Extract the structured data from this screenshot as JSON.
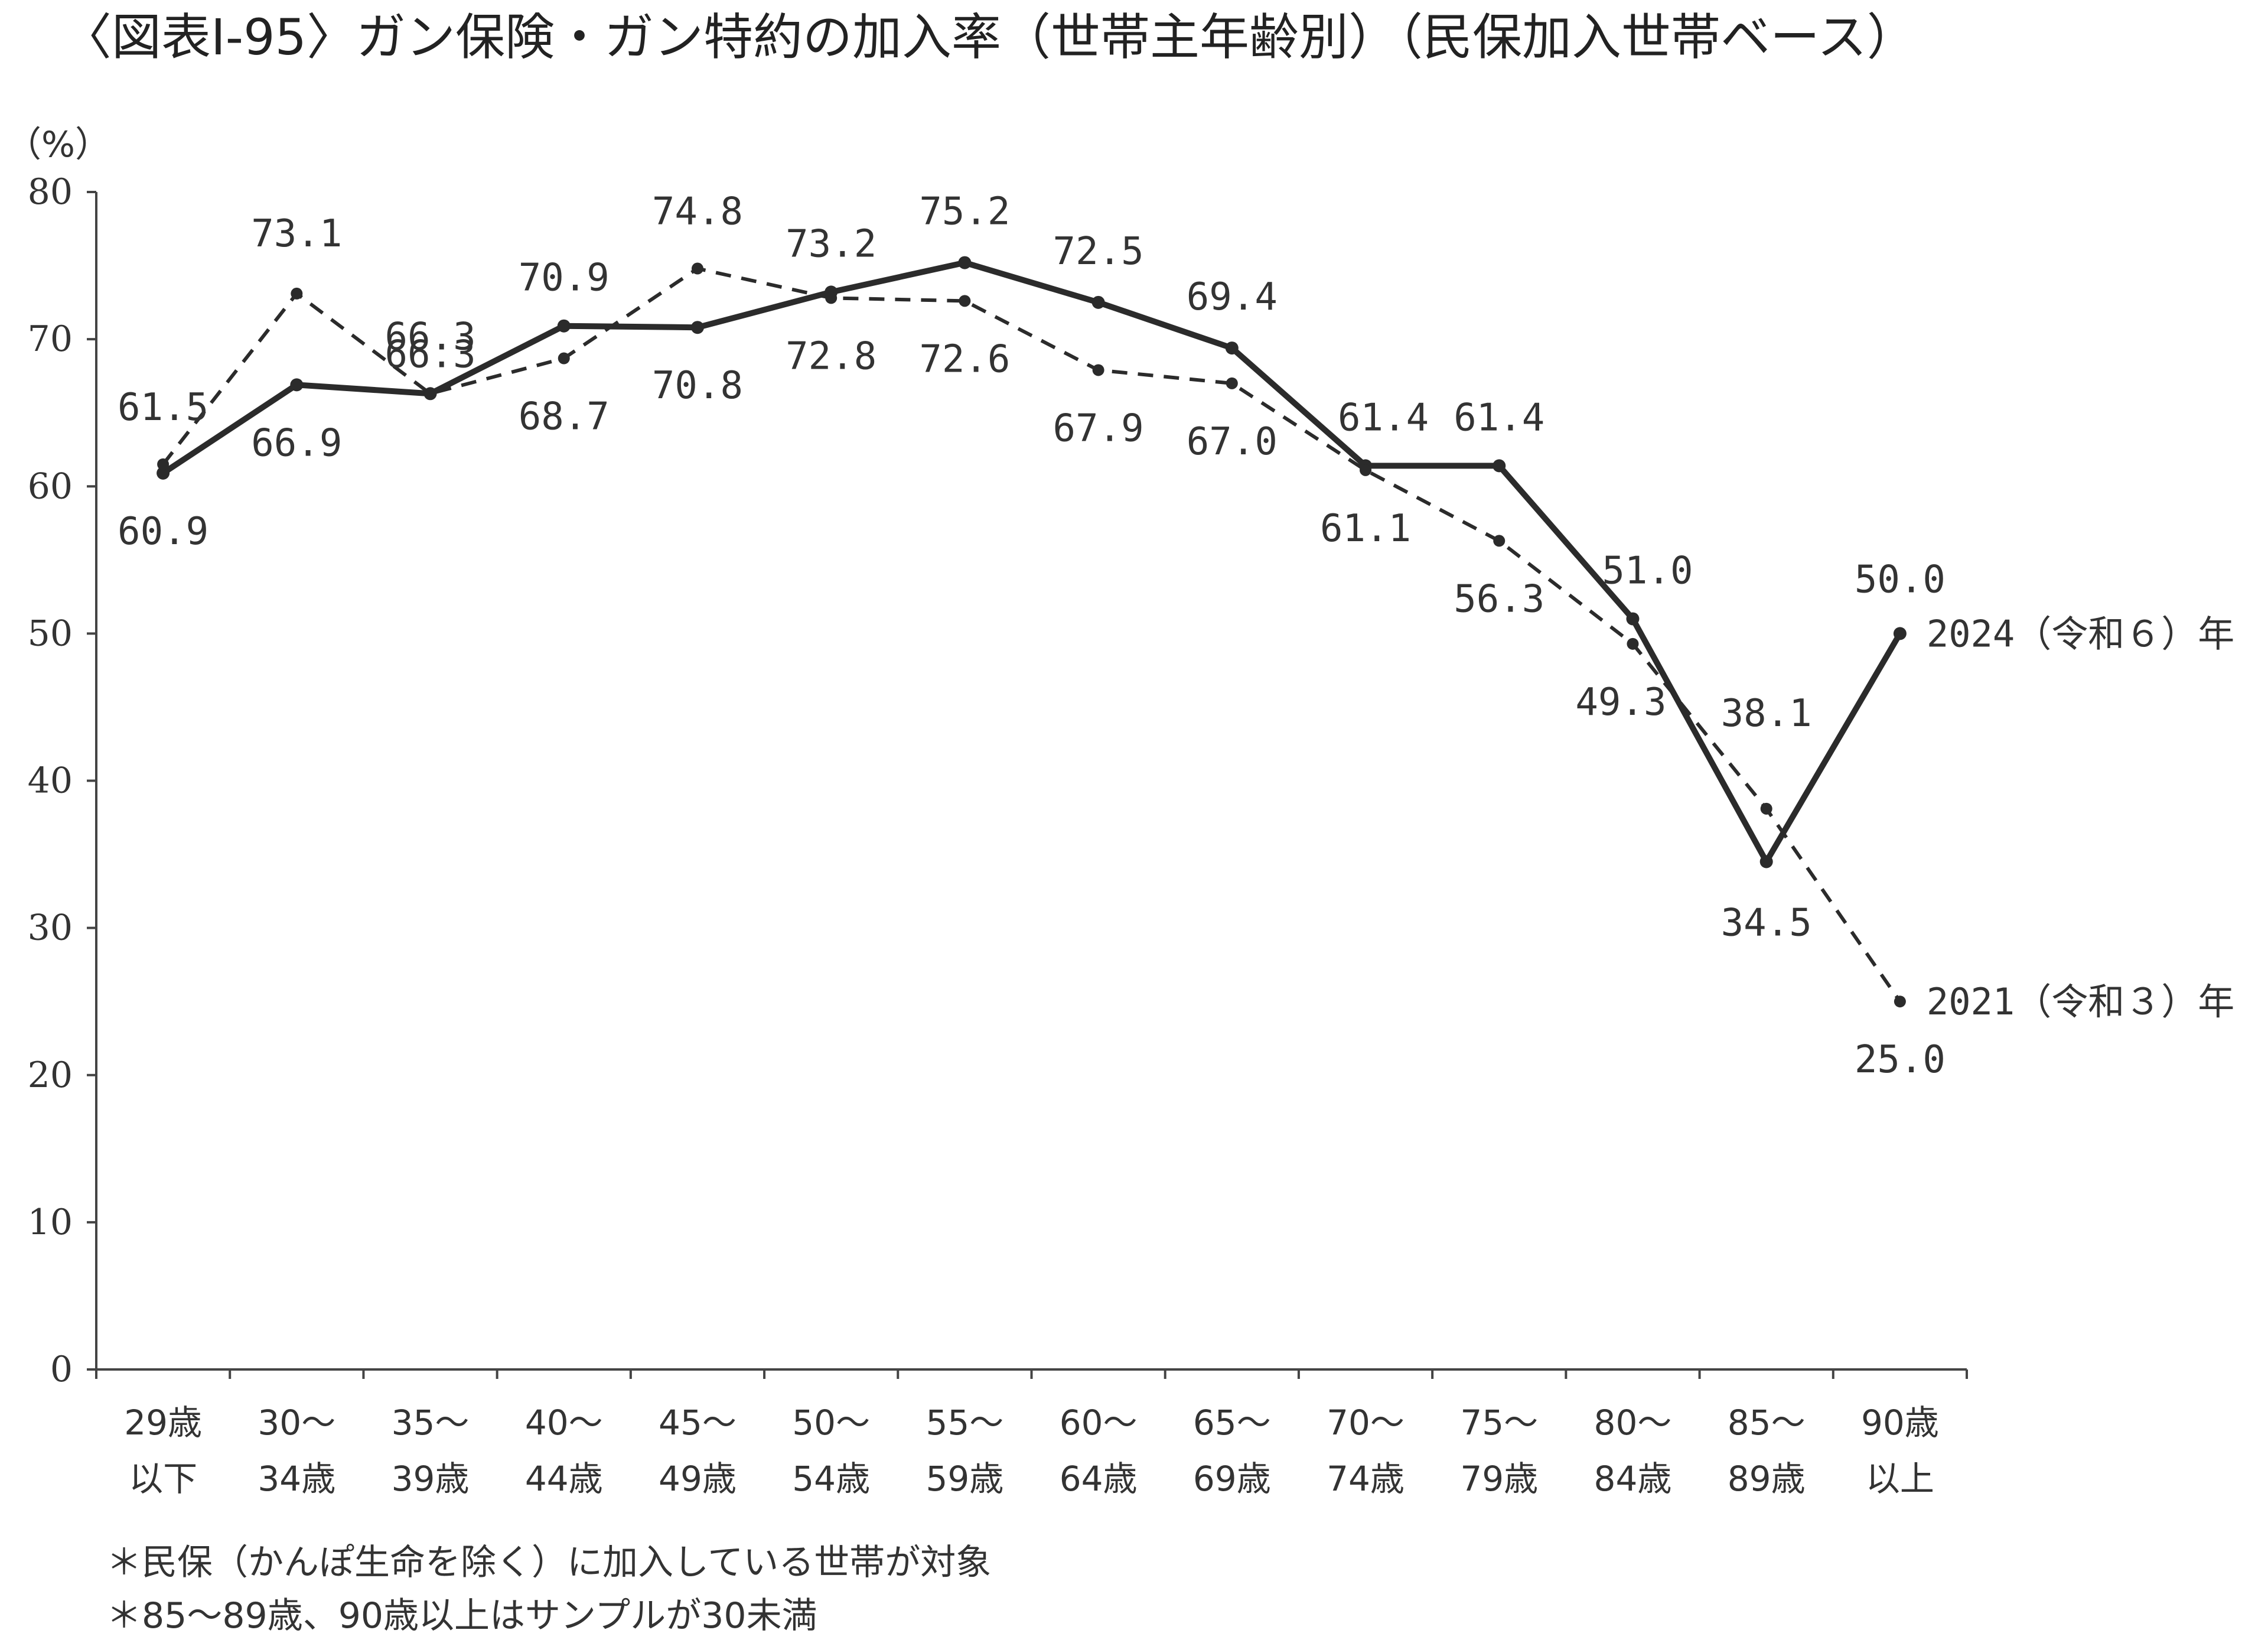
{
  "chart_data": {
    "type": "line",
    "title": "〈図表Ⅰ-95〉ガン保険・ガン特約の加入率（世帯主年齢別）（民保加入世帯ベース）",
    "ylabel": "（%）",
    "xlabel": "",
    "ylim": [
      0,
      80
    ],
    "yticks": [
      "0",
      "10",
      "20",
      "30",
      "40",
      "50",
      "60",
      "70",
      "80"
    ],
    "grid": false,
    "categories": [
      [
        "29歳",
        "以下"
      ],
      [
        "30～",
        "34歳"
      ],
      [
        "35～",
        "39歳"
      ],
      [
        "40～",
        "44歳"
      ],
      [
        "45～",
        "49歳"
      ],
      [
        "50～",
        "54歳"
      ],
      [
        "55～",
        "59歳"
      ],
      [
        "60～",
        "64歳"
      ],
      [
        "65～",
        "69歳"
      ],
      [
        "70～",
        "74歳"
      ],
      [
        "75～",
        "79歳"
      ],
      [
        "80～",
        "84歳"
      ],
      [
        "85～",
        "89歳"
      ],
      [
        "90歳",
        "以上"
      ]
    ],
    "series": [
      {
        "name": "2024（令和６）年",
        "style": "solid",
        "color": "#2b2b2b",
        "values": [
          60.9,
          66.9,
          66.3,
          70.9,
          70.8,
          73.2,
          75.2,
          72.5,
          69.4,
          61.4,
          61.4,
          51.0,
          34.5,
          50.0
        ],
        "labels": [
          "60.9",
          "66.9",
          "66.3",
          "70.9",
          "70.8",
          "73.2",
          "75.2",
          "72.5",
          "69.4",
          "61.4",
          "61.4",
          "51.0",
          "34.5",
          "50.0"
        ]
      },
      {
        "name": "2021（令和３）年",
        "style": "dashed",
        "color": "#2b2b2b",
        "values": [
          61.5,
          73.1,
          66.3,
          68.7,
          74.8,
          72.8,
          72.6,
          67.9,
          67.0,
          61.1,
          56.3,
          49.3,
          38.1,
          25.0
        ],
        "labels": [
          "61.5",
          "73.1",
          "66.3",
          "68.7",
          "74.8",
          "72.8",
          "72.6",
          "67.9",
          "67.0",
          "61.1",
          "56.3",
          "49.3",
          "38.1",
          "25.0"
        ]
      }
    ],
    "notes": [
      "＊民保（かんぽ生命を除く）に加入している世帯が対象",
      "＊85～89歳、90歳以上はサンプルが30未満"
    ]
  }
}
